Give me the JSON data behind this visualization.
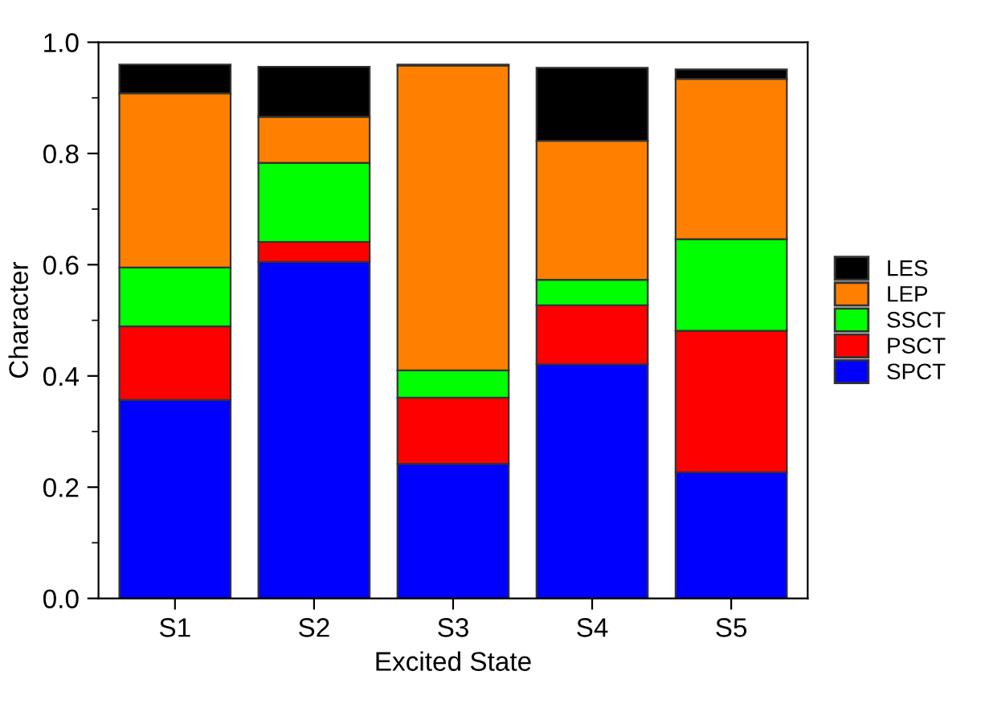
{
  "chart_data": {
    "type": "bar",
    "stacked": true,
    "xlabel": "Excited State",
    "ylabel": "Character",
    "categories": [
      "S1",
      "S2",
      "S3",
      "S4",
      "S5"
    ],
    "series": [
      {
        "name": "SPCT",
        "color": "#0000ff",
        "values": [
          0.357,
          0.605,
          0.242,
          0.421,
          0.227
        ]
      },
      {
        "name": "PSCT",
        "color": "#ff0000",
        "values": [
          0.132,
          0.036,
          0.119,
          0.106,
          0.254
        ]
      },
      {
        "name": "SSCT",
        "color": "#00ff00",
        "values": [
          0.106,
          0.142,
          0.049,
          0.046,
          0.165
        ]
      },
      {
        "name": "LEP",
        "color": "#ff8000",
        "values": [
          0.313,
          0.083,
          0.548,
          0.25,
          0.288
        ]
      },
      {
        "name": "LES",
        "color": "#000000",
        "values": [
          0.052,
          0.09,
          0.002,
          0.131,
          0.017
        ]
      }
    ],
    "ylim": [
      0,
      1.0
    ],
    "yticks": [
      {
        "value": 0,
        "label": "0.0"
      },
      {
        "value": 0.1,
        "label": null
      },
      {
        "value": 0.2,
        "label": "0.2"
      },
      {
        "value": 0.3,
        "label": null
      },
      {
        "value": 0.4,
        "label": "0.4"
      },
      {
        "value": 0.5,
        "label": null
      },
      {
        "value": 0.6,
        "label": "0.6"
      },
      {
        "value": 0.7,
        "label": null
      },
      {
        "value": 0.8,
        "label": "0.8"
      },
      {
        "value": 0.9,
        "label": null
      },
      {
        "value": 1.0,
        "label": "1.0"
      }
    ],
    "legend": "right",
    "grid": false
  }
}
